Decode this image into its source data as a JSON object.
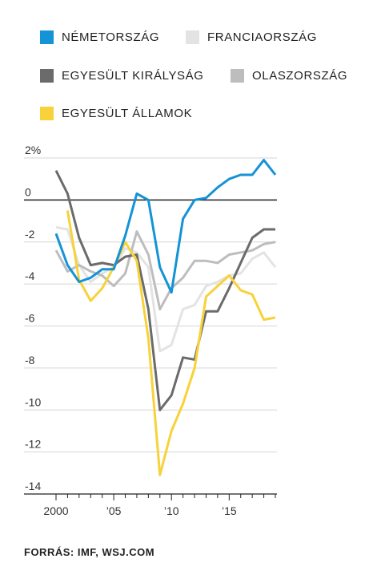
{
  "chart_data": {
    "type": "line",
    "title": "",
    "xlabel": "",
    "ylabel": "",
    "xlim": [
      2000,
      2019
    ],
    "ylim": [
      -14,
      2.5
    ],
    "x_ticks": [
      2000,
      2001,
      2002,
      2003,
      2004,
      2005,
      2006,
      2007,
      2008,
      2009,
      2010,
      2011,
      2012,
      2013,
      2014,
      2015,
      2016,
      2017,
      2018,
      2019
    ],
    "x_tick_labels": [
      {
        "x": 2000,
        "label": "2000"
      },
      {
        "x": 2005,
        "label": "’05"
      },
      {
        "x": 2010,
        "label": "’10"
      },
      {
        "x": 2015,
        "label": "’15"
      }
    ],
    "y_ticks": [
      {
        "value": 2,
        "label": "2%"
      },
      {
        "value": 0,
        "label": "0"
      },
      {
        "value": -2,
        "label": "-2"
      },
      {
        "value": -4,
        "label": "-4"
      },
      {
        "value": -6,
        "label": "-6"
      },
      {
        "value": -8,
        "label": "-8"
      },
      {
        "value": -10,
        "label": "-10"
      },
      {
        "value": -12,
        "label": "-12"
      },
      {
        "value": -14,
        "label": "-14"
      }
    ],
    "grid": true,
    "legend_position": "top",
    "series": [
      {
        "name": "FRANCIAORSZÁG",
        "color": "#e3e3e3",
        "x": [
          2000,
          2001,
          2002,
          2003,
          2004,
          2005,
          2006,
          2007,
          2008,
          2009,
          2010,
          2011,
          2012,
          2013,
          2014,
          2015,
          2016,
          2017,
          2018,
          2019
        ],
        "values": [
          -1.3,
          -1.4,
          -3.1,
          -3.9,
          -3.5,
          -3.2,
          -2.3,
          -2.5,
          -3.2,
          -7.2,
          -6.9,
          -5.2,
          -5.0,
          -4.1,
          -3.9,
          -3.6,
          -3.5,
          -2.8,
          -2.5,
          -3.2
        ]
      },
      {
        "name": "OLASZORSZÁG",
        "color": "#bdbdbd",
        "x": [
          2000,
          2001,
          2002,
          2003,
          2004,
          2005,
          2006,
          2007,
          2008,
          2009,
          2010,
          2011,
          2012,
          2013,
          2014,
          2015,
          2016,
          2017,
          2018,
          2019
        ],
        "values": [
          -2.4,
          -3.4,
          -3.1,
          -3.4,
          -3.6,
          -4.1,
          -3.5,
          -1.5,
          -2.6,
          -5.2,
          -4.2,
          -3.7,
          -2.9,
          -2.9,
          -3.0,
          -2.6,
          -2.5,
          -2.4,
          -2.1,
          -2.0
        ]
      },
      {
        "name": "EGYESÜLT KIRÁLYSÁG",
        "color": "#6b6b6b",
        "x": [
          2000,
          2001,
          2002,
          2003,
          2004,
          2005,
          2006,
          2007,
          2008,
          2009,
          2010,
          2011,
          2012,
          2013,
          2014,
          2015,
          2016,
          2017,
          2018,
          2019
        ],
        "values": [
          1.4,
          0.3,
          -1.8,
          -3.1,
          -3.0,
          -3.1,
          -2.7,
          -2.6,
          -5.2,
          -10.0,
          -9.3,
          -7.5,
          -7.6,
          -5.3,
          -5.3,
          -4.2,
          -3.0,
          -1.8,
          -1.4,
          -1.4
        ]
      },
      {
        "name": "EGYESÜLT ÁLLAMOK",
        "color": "#f7d23a",
        "x": [
          2001,
          2002,
          2003,
          2004,
          2005,
          2006,
          2007,
          2008,
          2009,
          2010,
          2011,
          2012,
          2013,
          2014,
          2015,
          2016,
          2017,
          2018,
          2019
        ],
        "values": [
          -0.5,
          -3.8,
          -4.8,
          -4.2,
          -3.2,
          -2.0,
          -2.9,
          -6.6,
          -13.1,
          -11.0,
          -9.7,
          -8.0,
          -4.6,
          -4.1,
          -3.6,
          -4.3,
          -4.5,
          -5.7,
          -5.6
        ]
      },
      {
        "name": "NÉMETORSZÁG",
        "color": "#1493d6",
        "x": [
          2000,
          2001,
          2002,
          2003,
          2004,
          2005,
          2006,
          2007,
          2008,
          2009,
          2010,
          2011,
          2012,
          2013,
          2014,
          2015,
          2016,
          2017,
          2018,
          2019
        ],
        "values": [
          -1.6,
          -3.1,
          -3.9,
          -3.7,
          -3.3,
          -3.3,
          -1.7,
          0.3,
          0.0,
          -3.2,
          -4.4,
          -0.9,
          0.0,
          0.1,
          0.6,
          1.0,
          1.2,
          1.2,
          1.9,
          1.2
        ]
      }
    ]
  },
  "legend": {
    "items": [
      {
        "label": "NÉMETORSZÁG",
        "color": "#1493d6"
      },
      {
        "label": "FRANCIAORSZÁG",
        "color": "#e3e3e3"
      },
      {
        "label": "EGYESÜLT KIRÁLYSÁG",
        "color": "#6b6b6b"
      },
      {
        "label": "OLASZORSZÁG",
        "color": "#bdbdbd"
      },
      {
        "label": "EGYESÜLT ÁLLAMOK",
        "color": "#f7d23a"
      }
    ]
  },
  "source": "FORRÁS: IMF, WSJ.COM"
}
